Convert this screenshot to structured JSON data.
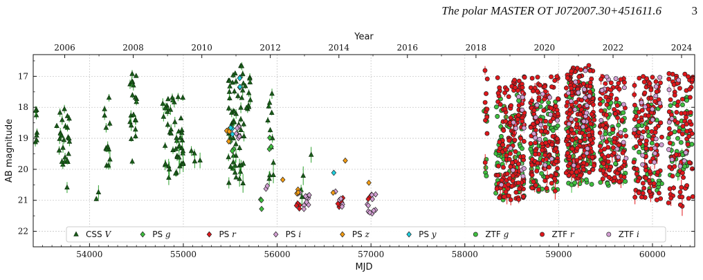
{
  "header": {
    "title": "The polar MASTER OT J072007.30+451611.6",
    "page_number": "3"
  },
  "chart_data": {
    "type": "scatter",
    "xlabel": "MJD",
    "ylabel": "AB magnitude",
    "top_axis_label": "Year",
    "xlim": [
      53400,
      60450
    ],
    "ylim": [
      22.5,
      16.3
    ],
    "y_inverted": true,
    "grid": true,
    "legend_position": "bottom",
    "x_ticks": [
      54000,
      55000,
      56000,
      57000,
      58000,
      59000,
      60000
    ],
    "y_ticks": [
      17,
      18,
      19,
      20,
      21,
      22
    ],
    "year_ticks": [
      {
        "label": "2006",
        "mjd": 53736
      },
      {
        "label": "2008",
        "mjd": 54466
      },
      {
        "label": "2010",
        "mjd": 55197
      },
      {
        "label": "2012",
        "mjd": 55927
      },
      {
        "label": "2014",
        "mjd": 56658
      },
      {
        "label": "2016",
        "mjd": 57388
      },
      {
        "label": "2018",
        "mjd": 58119
      },
      {
        "label": "2020",
        "mjd": 58849
      },
      {
        "label": "2022",
        "mjd": 59580
      },
      {
        "label": "2024",
        "mjd": 60310
      }
    ],
    "series": [
      {
        "name": "CSS V",
        "label_prefix": "CSS",
        "label_band": "V",
        "marker": "triangle",
        "color": "#1a5c1a",
        "errcolor": "#2ca02c",
        "segments": [
          {
            "x": [
              53420,
              53440
            ],
            "y": [
              17.8,
              19.3
            ],
            "n": 7
          },
          {
            "x": [
              53650,
              53790
            ],
            "y": [
              17.8,
              20.6
            ],
            "n": 26
          },
          {
            "x": [
              54070,
              54100
            ],
            "y": [
              20.4,
              21.0
            ],
            "n": 2
          },
          {
            "x": [
              54160,
              54230
            ],
            "y": [
              17.3,
              20.3
            ],
            "n": 12
          },
          {
            "x": [
              54420,
              54520
            ],
            "y": [
              16.9,
              19.8
            ],
            "n": 20
          },
          {
            "x": [
              54780,
              55000
            ],
            "y": [
              17.6,
              20.4
            ],
            "n": 48
          },
          {
            "x": [
              55080,
              55180
            ],
            "y": [
              19.4,
              19.8
            ],
            "n": 4
          },
          {
            "x": [
              55480,
              55650
            ],
            "y": [
              16.6,
              20.6
            ],
            "n": 55
          },
          {
            "x": [
              55660,
              55720
            ],
            "y": [
              16.9,
              18.2
            ],
            "n": 10
          },
          {
            "x": [
              55900,
              55960
            ],
            "y": [
              17.5,
              20.5
            ],
            "n": 12
          },
          {
            "x": [
              56250,
              56280
            ],
            "y": [
              20.2,
              20.9
            ],
            "n": 3
          },
          {
            "x": [
              56360,
              56380
            ],
            "y": [
              19.4,
              19.6
            ],
            "n": 1
          }
        ]
      },
      {
        "name": "PS g",
        "label_prefix": "PS",
        "label_band": "g",
        "marker": "diamond",
        "color": "#3fbf3f",
        "segments": [
          {
            "x": [
              55480,
              55540
            ],
            "y": [
              18.9,
              19.6
            ],
            "n": 4
          },
          {
            "x": [
              55820,
              55840
            ],
            "y": [
              20.8,
              21.3
            ],
            "n": 3
          },
          {
            "x": [
              55900,
              55940
            ],
            "y": [
              18.9,
              19.4
            ],
            "n": 3
          }
        ]
      },
      {
        "name": "PS r",
        "label_prefix": "PS",
        "label_band": "r",
        "marker": "diamond",
        "color": "#e0171b",
        "segments": [
          {
            "x": [
              56200,
              56240
            ],
            "y": [
              20.9,
              21.3
            ],
            "n": 4
          },
          {
            "x": [
              56640,
              56720
            ],
            "y": [
              20.9,
              21.3
            ],
            "n": 5
          },
          {
            "x": [
              56960,
              57010
            ],
            "y": [
              20.8,
              21.1
            ],
            "n": 3
          }
        ]
      },
      {
        "name": "PS i",
        "label_prefix": "PS",
        "label_band": "i",
        "marker": "diamond",
        "color": "#d4a0d4",
        "segments": [
          {
            "x": [
              55560,
              55600
            ],
            "y": [
              18.4,
              19.1
            ],
            "n": 5
          },
          {
            "x": [
              55870,
              55900
            ],
            "y": [
              20.5,
              20.8
            ],
            "n": 2
          },
          {
            "x": [
              56210,
              56350
            ],
            "y": [
              20.7,
              21.3
            ],
            "n": 12
          },
          {
            "x": [
              56600,
              56700
            ],
            "y": [
              20.7,
              21.3
            ],
            "n": 5
          },
          {
            "x": [
              56960,
              57060
            ],
            "y": [
              20.8,
              21.5
            ],
            "n": 10
          }
        ]
      },
      {
        "name": "PS z",
        "label_prefix": "PS",
        "label_band": "z",
        "marker": "diamond",
        "color": "#f39c12",
        "segments": [
          {
            "x": [
              55460,
              55520
            ],
            "y": [
              18.6,
              19.3
            ],
            "n": 4
          },
          {
            "x": [
              56050,
              56070
            ],
            "y": [
              20.2,
              20.4
            ],
            "n": 1
          },
          {
            "x": [
              56200,
              56240
            ],
            "y": [
              20.6,
              20.9
            ],
            "n": 3
          },
          {
            "x": [
              56590,
              56610
            ],
            "y": [
              20.7,
              20.9
            ],
            "n": 1
          },
          {
            "x": [
              56720,
              56740
            ],
            "y": [
              19.6,
              19.8
            ],
            "n": 1
          },
          {
            "x": [
              56960,
              56980
            ],
            "y": [
              20.4,
              20.6
            ],
            "n": 1
          }
        ]
      },
      {
        "name": "PS y",
        "label_prefix": "PS",
        "label_band": "y",
        "marker": "diamond",
        "color": "#1fd0e0",
        "segments": [
          {
            "x": [
              55500,
              55540
            ],
            "y": [
              18.4,
              18.9
            ],
            "n": 3
          },
          {
            "x": [
              55600,
              55660
            ],
            "y": [
              16.9,
              17.4
            ],
            "n": 4
          },
          {
            "x": [
              56590,
              56610
            ],
            "y": [
              20.1,
              20.3
            ],
            "n": 1
          }
        ]
      },
      {
        "name": "ZTF g",
        "label_prefix": "ZTF",
        "label_band": "g",
        "marker": "circle",
        "color": "#3fbf3f",
        "segments": [
          {
            "x": [
              58200,
              58240
            ],
            "y": [
              18.0,
              20.5
            ],
            "n": 8
          },
          {
            "x": [
              58330,
              58640
            ],
            "y": [
              17.6,
              21.0
            ],
            "n": 80
          },
          {
            "x": [
              58700,
              59000
            ],
            "y": [
              17.8,
              20.8
            ],
            "n": 80
          },
          {
            "x": [
              59080,
              59380
            ],
            "y": [
              17.2,
              20.5
            ],
            "n": 100
          },
          {
            "x": [
              59440,
              59720
            ],
            "y": [
              17.8,
              20.6
            ],
            "n": 60
          },
          {
            "x": [
              59800,
              60100
            ],
            "y": [
              17.8,
              20.8
            ],
            "n": 60
          },
          {
            "x": [
              60170,
              60420
            ],
            "y": [
              17.6,
              20.6
            ],
            "n": 45
          }
        ]
      },
      {
        "name": "ZTF r",
        "label_prefix": "ZTF",
        "label_band": "r",
        "marker": "circle",
        "color": "#e0171b",
        "segments": [
          {
            "x": [
              58210,
              58240
            ],
            "y": [
              16.8,
              20.4
            ],
            "n": 10
          },
          {
            "x": [
              58330,
              58640
            ],
            "y": [
              17.0,
              21.0
            ],
            "n": 150
          },
          {
            "x": [
              58700,
              59000
            ],
            "y": [
              17.0,
              20.7
            ],
            "n": 150
          },
          {
            "x": [
              59080,
              59380
            ],
            "y": [
              16.6,
              20.3
            ],
            "n": 220
          },
          {
            "x": [
              59440,
              59720
            ],
            "y": [
              17.0,
              20.4
            ],
            "n": 110
          },
          {
            "x": [
              59800,
              60100
            ],
            "y": [
              17.0,
              21.0
            ],
            "n": 120
          },
          {
            "x": [
              60170,
              60440
            ],
            "y": [
              16.9,
              21.2
            ],
            "n": 90
          }
        ]
      },
      {
        "name": "ZTF i",
        "label_prefix": "ZTF",
        "label_band": "i",
        "marker": "circle",
        "color": "#d4a0d4",
        "segments": [
          {
            "x": [
              58380,
              58640
            ],
            "y": [
              17.5,
              20.5
            ],
            "n": 12
          },
          {
            "x": [
              58720,
              59000
            ],
            "y": [
              17.3,
              20.3
            ],
            "n": 12
          },
          {
            "x": [
              59100,
              59380
            ],
            "y": [
              16.8,
              20.0
            ],
            "n": 20
          },
          {
            "x": [
              59440,
              59720
            ],
            "y": [
              17.0,
              20.0
            ],
            "n": 14
          },
          {
            "x": [
              59800,
              60100
            ],
            "y": [
              17.0,
              20.3
            ],
            "n": 18
          },
          {
            "x": [
              60170,
              60420
            ],
            "y": [
              17.0,
              20.0
            ],
            "n": 10
          }
        ]
      }
    ]
  }
}
